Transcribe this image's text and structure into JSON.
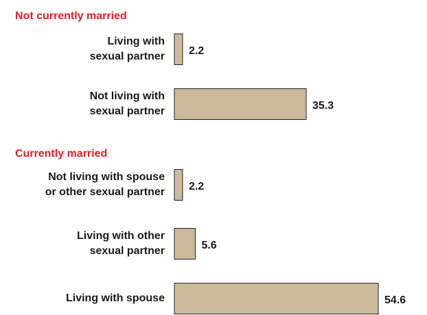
{
  "chart_data": {
    "type": "bar",
    "orientation": "horizontal",
    "color": "#cdb99b",
    "group_color": "#e3202b",
    "groups": [
      {
        "name": "Not currently married",
        "categories": [
          [
            "Living with",
            "sexual partner"
          ],
          [
            "Not living with",
            "sexual partner"
          ]
        ],
        "values": [
          2.2,
          35.3
        ]
      },
      {
        "name": "Currently married",
        "categories": [
          [
            "Not living with spouse",
            "or other sexual partner"
          ],
          [
            "Living with other",
            "sexual partner"
          ],
          [
            "Living with spouse"
          ]
        ],
        "values": [
          2.2,
          5.6,
          54.6
        ]
      }
    ]
  }
}
